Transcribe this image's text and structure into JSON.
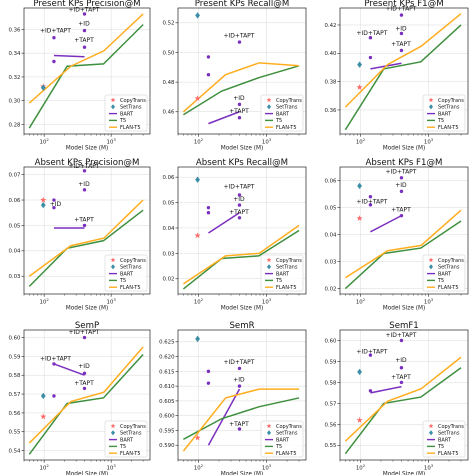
{
  "figure": {
    "x_label": "Model Size (M)"
  },
  "legend": [
    {
      "name": "CopyTrans",
      "marker": "star",
      "color": "#ff6b6b"
    },
    {
      "name": "SetTrans",
      "marker": "diamond",
      "color": "#3d8fa8"
    },
    {
      "name": "BART",
      "marker": "line",
      "color": "#7b2fbf"
    },
    {
      "name": "T5",
      "marker": "line",
      "color": "#3e8f3e"
    },
    {
      "name": "FLAN-T5",
      "marker": "line",
      "color": "#ffad1f"
    }
  ],
  "chart_data": [
    {
      "type": "line",
      "title": "Present KPs Precision@M",
      "xlabel": "Model Size (M)",
      "xscale": "log",
      "xlim": [
        50,
        3800
      ],
      "grid": true,
      "ylim": [
        0.272,
        0.378
      ],
      "yticks": [
        0.28,
        0.3,
        0.32,
        0.34,
        0.36
      ],
      "ytick_labels": [
        "0.28",
        "0.30",
        "0.32",
        "0.34",
        "0.36"
      ],
      "series": [
        {
          "name": "BART",
          "x": [
            140,
            400
          ],
          "y": [
            0.338,
            0.337
          ]
        },
        {
          "name": "T5",
          "x": [
            60,
            220,
            770,
            3000
          ],
          "y": [
            0.277,
            0.329,
            0.331,
            0.364
          ]
        },
        {
          "name": "FLAN-T5",
          "x": [
            60,
            250,
            780,
            3000
          ],
          "y": [
            0.298,
            0.329,
            0.342,
            0.373
          ]
        }
      ],
      "points": [
        {
          "series": "CopyTrans",
          "x": 97,
          "y": 0.312
        },
        {
          "series": "SetTrans",
          "x": 97,
          "y": 0.311
        }
      ],
      "annotations": [
        {
          "text": "+ID+TAPT",
          "x": 400,
          "y": 0.374,
          "dot_y": 0.373
        },
        {
          "text": "+ID+TAPT",
          "x": 140,
          "y": 0.356,
          "dot_y": 0.353
        },
        {
          "text": "+ID",
          "x": 400,
          "y": 0.362,
          "dot_y": 0.359
        },
        {
          "text": "+TAPT",
          "x": 400,
          "y": 0.348,
          "dot_y": 0.345
        },
        {
          "text": "",
          "x": 140,
          "y": 0.333,
          "dot_y": 0.333
        }
      ]
    },
    {
      "type": "line",
      "title": "Present KPs Recall@M",
      "xlabel": "Model Size (M)",
      "xscale": "log",
      "xlim": [
        50,
        3800
      ],
      "grid": true,
      "ylim": [
        0.445,
        0.53
      ],
      "yticks": [
        0.46,
        0.48,
        0.5,
        0.52
      ],
      "ytick_labels": [
        "0.46",
        "0.48",
        "0.50",
        "0.52"
      ],
      "series": [
        {
          "name": "BART",
          "x": [
            140,
            400
          ],
          "y": [
            0.452,
            0.46
          ]
        },
        {
          "name": "T5",
          "x": [
            60,
            220,
            770,
            3000
          ],
          "y": [
            0.458,
            0.474,
            0.483,
            0.491
          ]
        },
        {
          "name": "FLAN-T5",
          "x": [
            60,
            250,
            780,
            3000
          ],
          "y": [
            0.46,
            0.485,
            0.493,
            0.491
          ]
        }
      ],
      "points": [
        {
          "series": "CopyTrans",
          "x": 97,
          "y": 0.469
        },
        {
          "series": "SetTrans",
          "x": 97,
          "y": 0.525
        }
      ],
      "annotations": [
        {
          "text": "+ID+TAPT",
          "x": 400,
          "y": 0.509,
          "dot_y": 0.507
        },
        {
          "text": "+ID",
          "x": 400,
          "y": 0.467,
          "dot_y": 0.465
        },
        {
          "text": "+TAPT",
          "x": 400,
          "y": 0.458,
          "dot_y": 0.456
        },
        {
          "text": "",
          "x": 140,
          "y": 0.497,
          "dot_y": 0.497
        },
        {
          "text": "",
          "x": 140,
          "y": 0.485,
          "dot_y": 0.485
        }
      ]
    },
    {
      "type": "line",
      "title": "Present KPs F1@M",
      "xlabel": "Model Size (M)",
      "xscale": "log",
      "xlim": [
        50,
        3800
      ],
      "grid": true,
      "ylim": [
        0.343,
        0.432
      ],
      "yticks": [
        0.36,
        0.38,
        0.4,
        0.42
      ],
      "ytick_labels": [
        "0.36",
        "0.38",
        "0.40",
        "0.42"
      ],
      "series": [
        {
          "name": "BART",
          "x": [
            140,
            400
          ],
          "y": [
            0.389,
            0.393
          ]
        },
        {
          "name": "T5",
          "x": [
            60,
            220,
            770,
            3000
          ],
          "y": [
            0.346,
            0.389,
            0.394,
            0.42
          ]
        },
        {
          "name": "FLAN-T5",
          "x": [
            60,
            250,
            780,
            3000
          ],
          "y": [
            0.362,
            0.392,
            0.405,
            0.428
          ]
        }
      ],
      "points": [
        {
          "series": "CopyTrans",
          "x": 97,
          "y": 0.376
        },
        {
          "series": "SetTrans",
          "x": 97,
          "y": 0.392
        }
      ],
      "annotations": [
        {
          "text": "+ID+TAPT",
          "x": 400,
          "y": 0.429,
          "dot_y": 0.427
        },
        {
          "text": "+ID+TAPT",
          "x": 140,
          "y": 0.412,
          "dot_y": 0.411
        },
        {
          "text": "+ID",
          "x": 400,
          "y": 0.415,
          "dot_y": 0.414
        },
        {
          "text": "+TAPT",
          "x": 400,
          "y": 0.404,
          "dot_y": 0.402
        },
        {
          "text": "",
          "x": 140,
          "y": 0.397,
          "dot_y": 0.397
        }
      ]
    },
    {
      "type": "line",
      "title": "Absent KPs Precision@M",
      "xlabel": "Model Size (M)",
      "xscale": "log",
      "xlim": [
        50,
        3800
      ],
      "grid": true,
      "ylim": [
        0.023,
        0.073
      ],
      "yticks": [
        0.03,
        0.04,
        0.05,
        0.06,
        0.07
      ],
      "ytick_labels": [
        "0.03",
        "0.04",
        "0.05",
        "0.06",
        "0.07"
      ],
      "series": [
        {
          "name": "BART",
          "x": [
            140,
            400
          ],
          "y": [
            0.049,
            0.049
          ]
        },
        {
          "name": "T5",
          "x": [
            60,
            220,
            770,
            3000
          ],
          "y": [
            0.026,
            0.041,
            0.044,
            0.056
          ]
        },
        {
          "name": "FLAN-T5",
          "x": [
            60,
            250,
            780,
            3000
          ],
          "y": [
            0.03,
            0.042,
            0.045,
            0.06
          ]
        }
      ],
      "points": [
        {
          "series": "CopyTrans",
          "x": 97,
          "y": 0.06
        },
        {
          "series": "SetTrans",
          "x": 97,
          "y": 0.058
        }
      ],
      "annotations": [
        {
          "text": "+ID+TAPT",
          "x": 400,
          "y": 0.072,
          "dot_y": 0.0715
        },
        {
          "text": "+ID",
          "x": 400,
          "y": 0.065,
          "dot_y": 0.064
        },
        {
          "text": "+ID",
          "x": 140,
          "y": 0.057,
          "dot_y": 0.057
        },
        {
          "text": "+TAPT",
          "x": 400,
          "y": 0.051,
          "dot_y": 0.05
        },
        {
          "text": "",
          "x": 140,
          "y": 0.06,
          "dot_y": 0.06
        }
      ]
    },
    {
      "type": "line",
      "title": "Absent KPs Recall@M",
      "xlabel": "Model Size (M)",
      "xscale": "log",
      "xlim": [
        50,
        3800
      ],
      "grid": true,
      "ylim": [
        0.014,
        0.064
      ],
      "yticks": [
        0.02,
        0.03,
        0.04,
        0.05,
        0.06
      ],
      "ytick_labels": [
        "0.02",
        "0.03",
        "0.04",
        "0.05",
        "0.06"
      ],
      "series": [
        {
          "name": "BART",
          "x": [
            140,
            400
          ],
          "y": [
            0.038,
            0.046
          ]
        },
        {
          "name": "T5",
          "x": [
            60,
            220,
            770,
            3000
          ],
          "y": [
            0.016,
            0.028,
            0.029,
            0.039
          ]
        },
        {
          "name": "FLAN-T5",
          "x": [
            60,
            250,
            780,
            3000
          ],
          "y": [
            0.018,
            0.029,
            0.03,
            0.041
          ]
        }
      ],
      "points": [
        {
          "series": "CopyTrans",
          "x": 97,
          "y": 0.037
        },
        {
          "series": "SetTrans",
          "x": 97,
          "y": 0.059
        }
      ],
      "annotations": [
        {
          "text": "+ID+TAPT",
          "x": 400,
          "y": 0.055,
          "dot_y": 0.053
        },
        {
          "text": "+ID",
          "x": 400,
          "y": 0.05,
          "dot_y": 0.049
        },
        {
          "text": "+TAPT",
          "x": 400,
          "y": 0.045,
          "dot_y": 0.044
        },
        {
          "text": "",
          "x": 140,
          "y": 0.048,
          "dot_y": 0.048
        },
        {
          "text": "",
          "x": 140,
          "y": 0.046,
          "dot_y": 0.046
        }
      ]
    },
    {
      "type": "line",
      "title": "Absent KPs F1@M",
      "xlabel": "Model Size (M)",
      "xscale": "log",
      "xlim": [
        50,
        3800
      ],
      "grid": true,
      "ylim": [
        0.018,
        0.065
      ],
      "yticks": [
        0.02,
        0.03,
        0.04,
        0.05,
        0.06
      ],
      "ytick_labels": [
        "0.02",
        "0.03",
        "0.04",
        "0.05",
        "0.06"
      ],
      "series": [
        {
          "name": "BART",
          "x": [
            140,
            400
          ],
          "y": [
            0.041,
            0.047
          ]
        },
        {
          "name": "T5",
          "x": [
            60,
            220,
            770,
            3000
          ],
          "y": [
            0.02,
            0.033,
            0.035,
            0.045
          ]
        },
        {
          "name": "FLAN-T5",
          "x": [
            60,
            250,
            780,
            3000
          ],
          "y": [
            0.024,
            0.034,
            0.036,
            0.049
          ]
        }
      ],
      "points": [
        {
          "series": "CopyTrans",
          "x": 97,
          "y": 0.046
        },
        {
          "series": "SetTrans",
          "x": 97,
          "y": 0.058
        }
      ],
      "annotations": [
        {
          "text": "+ID+TAPT",
          "x": 400,
          "y": 0.062,
          "dot_y": 0.061
        },
        {
          "text": "+ID",
          "x": 400,
          "y": 0.057,
          "dot_y": 0.056
        },
        {
          "text": "+ID+TAPT",
          "x": 140,
          "y": 0.051,
          "dot_y": 0.051
        },
        {
          "text": "+TAPT",
          "x": 400,
          "y": 0.048,
          "dot_y": 0.047
        },
        {
          "text": "",
          "x": 140,
          "y": 0.054,
          "dot_y": 0.054
        }
      ]
    },
    {
      "type": "line",
      "title": "SemP",
      "xlabel": "Model Size (M)",
      "xscale": "log",
      "xlim": [
        50,
        3800
      ],
      "grid": true,
      "ylim": [
        0.535,
        0.604
      ],
      "yticks": [
        0.54,
        0.55,
        0.56,
        0.57,
        0.58,
        0.59,
        0.6
      ],
      "ytick_labels": [
        "0.54",
        "0.55",
        "0.56",
        "0.57",
        "0.58",
        "0.59",
        "0.60"
      ],
      "series": [
        {
          "name": "BART",
          "x": [
            140,
            400
          ],
          "y": [
            0.586,
            0.58
          ]
        },
        {
          "name": "T5",
          "x": [
            60,
            220,
            770,
            3000
          ],
          "y": [
            0.538,
            0.565,
            0.568,
            0.591
          ]
        },
        {
          "name": "FLAN-T5",
          "x": [
            60,
            250,
            780,
            3000
          ],
          "y": [
            0.544,
            0.566,
            0.571,
            0.595
          ]
        }
      ],
      "points": [
        {
          "series": "CopyTrans",
          "x": 97,
          "y": 0.558
        },
        {
          "series": "SetTrans",
          "x": 97,
          "y": 0.569
        }
      ],
      "annotations": [
        {
          "text": "+ID+TAPT",
          "x": 400,
          "y": 0.601,
          "dot_y": 0.6
        },
        {
          "text": "+ID+TAPT",
          "x": 140,
          "y": 0.587,
          "dot_y": 0.586
        },
        {
          "text": "+ID",
          "x": 400,
          "y": 0.583,
          "dot_y": 0.581
        },
        {
          "text": "+TAPT",
          "x": 400,
          "y": 0.574,
          "dot_y": 0.573
        },
        {
          "text": "",
          "x": 140,
          "y": 0.569,
          "dot_y": 0.569
        }
      ]
    },
    {
      "type": "line",
      "title": "SemR",
      "xlabel": "Model Size (M)",
      "xscale": "log",
      "xlim": [
        50,
        3800
      ],
      "grid": true,
      "ylim": [
        0.585,
        0.629
      ],
      "yticks": [
        0.59,
        0.595,
        0.6,
        0.605,
        0.61,
        0.615,
        0.62,
        0.625
      ],
      "ytick_labels": [
        "0.590",
        "0.595",
        "0.600",
        "0.605",
        "0.610",
        "0.615",
        "0.620",
        "0.625"
      ],
      "series": [
        {
          "name": "BART",
          "x": [
            140,
            400
          ],
          "y": [
            0.59,
            0.609
          ]
        },
        {
          "name": "T5",
          "x": [
            60,
            220,
            770,
            3000
          ],
          "y": [
            0.592,
            0.599,
            0.603,
            0.606
          ]
        },
        {
          "name": "FLAN-T5",
          "x": [
            60,
            250,
            780,
            3000
          ],
          "y": [
            0.588,
            0.606,
            0.609,
            0.609
          ]
        }
      ],
      "points": [
        {
          "series": "CopyTrans",
          "x": 97,
          "y": 0.5925
        },
        {
          "series": "SetTrans",
          "x": 97,
          "y": 0.626
        }
      ],
      "annotations": [
        {
          "text": "+ID+TAPT",
          "x": 400,
          "y": 0.617,
          "dot_y": 0.616
        },
        {
          "text": "+ID",
          "x": 400,
          "y": 0.611,
          "dot_y": 0.61
        },
        {
          "text": "+TAPT",
          "x": 400,
          "y": 0.596,
          "dot_y": 0.5955
        },
        {
          "text": "",
          "x": 140,
          "y": 0.615,
          "dot_y": 0.615
        },
        {
          "text": "",
          "x": 140,
          "y": 0.611,
          "dot_y": 0.611
        }
      ]
    },
    {
      "type": "line",
      "title": "SemF1",
      "xlabel": "Model Size (M)",
      "xscale": "log",
      "xlim": [
        50,
        3800
      ],
      "grid": true,
      "ylim": [
        0.543,
        0.605
      ],
      "yticks": [
        0.55,
        0.56,
        0.57,
        0.58,
        0.59,
        0.6
      ],
      "ytick_labels": [
        "0.55",
        "0.56",
        "0.57",
        "0.58",
        "0.59",
        "0.60"
      ],
      "series": [
        {
          "name": "BART",
          "x": [
            140,
            400
          ],
          "y": [
            0.575,
            0.578
          ]
        },
        {
          "name": "T5",
          "x": [
            60,
            220,
            770,
            3000
          ],
          "y": [
            0.546,
            0.57,
            0.573,
            0.587
          ]
        },
        {
          "name": "FLAN-T5",
          "x": [
            60,
            250,
            780,
            3000
          ],
          "y": [
            0.552,
            0.571,
            0.577,
            0.592
          ]
        }
      ],
      "points": [
        {
          "series": "CopyTrans",
          "x": 97,
          "y": 0.562
        },
        {
          "series": "SetTrans",
          "x": 97,
          "y": 0.585
        }
      ],
      "annotations": [
        {
          "text": "+ID+TAPT",
          "x": 400,
          "y": 0.601,
          "dot_y": 0.6
        },
        {
          "text": "+ID+TAPT",
          "x": 140,
          "y": 0.593,
          "dot_y": 0.593
        },
        {
          "text": "+ID",
          "x": 400,
          "y": 0.589,
          "dot_y": 0.587
        },
        {
          "text": "+TAPT",
          "x": 400,
          "y": 0.581,
          "dot_y": 0.58
        },
        {
          "text": "",
          "x": 140,
          "y": 0.576,
          "dot_y": 0.576
        }
      ]
    }
  ]
}
